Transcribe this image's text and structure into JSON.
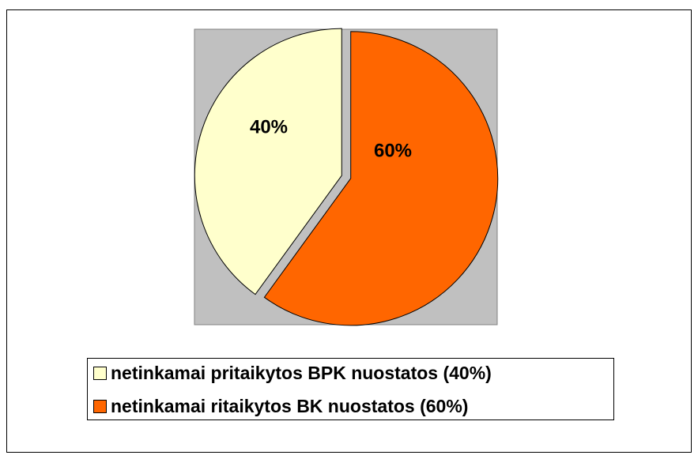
{
  "chart_data": {
    "type": "pie",
    "categories": [
      "netinkamai pritaikytos BPK nuostatos (40%)",
      "netinkamai ritaikytos BK nuostatos (60%)"
    ],
    "values": [
      40,
      60
    ],
    "value_labels": [
      "40%",
      "60%"
    ],
    "colors": [
      "#ffffcc",
      "#ff6600"
    ],
    "legend": "bottom"
  }
}
